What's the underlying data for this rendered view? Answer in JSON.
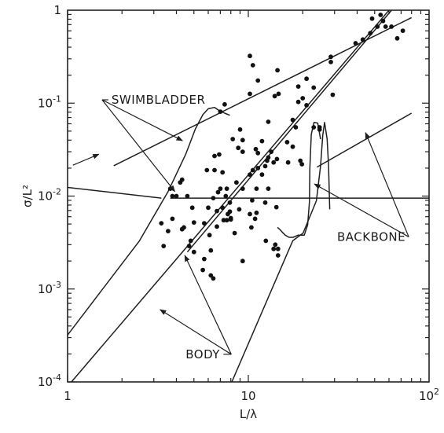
{
  "chart_data": {
    "type": "scatter",
    "x_scale": "log",
    "y_scale": "log",
    "xlim": [
      1,
      100
    ],
    "ylim": [
      0.0001,
      1
    ],
    "grid": false,
    "xlabel": "L/λ",
    "ylabel": "σ/L²",
    "x_ticks": [
      {
        "value": 1,
        "base": "1",
        "exp": ""
      },
      {
        "value": 10,
        "base": "10",
        "exp": ""
      },
      {
        "value": 100,
        "base": "10",
        "exp": "2"
      }
    ],
    "y_ticks": [
      {
        "value": 1,
        "base": "1",
        "exp": ""
      },
      {
        "value": 0.1,
        "base": "10",
        "exp": "-1"
      },
      {
        "value": 0.01,
        "base": "10",
        "exp": "-2"
      },
      {
        "value": 0.001,
        "base": "10",
        "exp": "-3"
      },
      {
        "value": 0.0001,
        "base": "10",
        "exp": "-4"
      }
    ],
    "points": [
      [
        53.9,
        0.891
      ],
      [
        48.4,
        0.812
      ],
      [
        55.6,
        0.766
      ],
      [
        57.5,
        0.666
      ],
      [
        51.8,
        0.666
      ],
      [
        61.9,
        0.666
      ],
      [
        71.6,
        0.602
      ],
      [
        47.3,
        0.566
      ],
      [
        66.7,
        0.498
      ],
      [
        43.0,
        0.484
      ],
      [
        39.2,
        0.441
      ],
      [
        28.6,
        0.315
      ],
      [
        28.6,
        0.277
      ],
      [
        10.2,
        0.322
      ],
      [
        10.6,
        0.256
      ],
      [
        14.5,
        0.226
      ],
      [
        11.3,
        0.175
      ],
      [
        21.0,
        0.183
      ],
      [
        18.9,
        0.151
      ],
      [
        23.0,
        0.147
      ],
      [
        14.0,
        0.119
      ],
      [
        14.7,
        0.126
      ],
      [
        10.2,
        0.126
      ],
      [
        29.3,
        0.123
      ],
      [
        18.9,
        0.103
      ],
      [
        20.0,
        0.113
      ],
      [
        21.0,
        0.095
      ],
      [
        7.4,
        0.097
      ],
      [
        7.0,
        0.081
      ],
      [
        17.6,
        0.066
      ],
      [
        12.9,
        0.063
      ],
      [
        18.3,
        0.055
      ],
      [
        23.0,
        0.055
      ],
      [
        24.8,
        0.052
      ],
      [
        9.0,
        0.052
      ],
      [
        9.3,
        0.04
      ],
      [
        24.8,
        0.055
      ],
      [
        8.2,
        0.041
      ],
      [
        11.9,
        0.039
      ],
      [
        16.4,
        0.038
      ],
      [
        8.8,
        0.033
      ],
      [
        11.0,
        0.032
      ],
      [
        17.6,
        0.034
      ],
      [
        9.3,
        0.03
      ],
      [
        11.3,
        0.029
      ],
      [
        6.9,
        0.028
      ],
      [
        6.5,
        0.027
      ],
      [
        13.4,
        0.03
      ],
      [
        12.9,
        0.026
      ],
      [
        14.4,
        0.025
      ],
      [
        12.7,
        0.024
      ],
      [
        13.8,
        0.023
      ],
      [
        16.6,
        0.023
      ],
      [
        19.4,
        0.024
      ],
      [
        19.8,
        0.022
      ],
      [
        12.4,
        0.021
      ],
      [
        11.3,
        0.02
      ],
      [
        10.6,
        0.019
      ],
      [
        10.2,
        0.017
      ],
      [
        11.9,
        0.017
      ],
      [
        5.9,
        0.019
      ],
      [
        6.5,
        0.019
      ],
      [
        7.2,
        0.018
      ],
      [
        4.3,
        0.015
      ],
      [
        4.2,
        0.014
      ],
      [
        8.6,
        0.014
      ],
      [
        3.7,
        0.012
      ],
      [
        7.0,
        0.012
      ],
      [
        7.6,
        0.012
      ],
      [
        9.3,
        0.012
      ],
      [
        11.1,
        0.012
      ],
      [
        12.9,
        0.012
      ],
      [
        4.0,
        0.01
      ],
      [
        3.8,
        0.01
      ],
      [
        4.6,
        0.01
      ],
      [
        6.8,
        0.011
      ],
      [
        7.5,
        0.01
      ],
      [
        10.5,
        0.009
      ],
      [
        6.4,
        0.0095
      ],
      [
        7.9,
        0.0085
      ],
      [
        12.4,
        0.0085
      ],
      [
        4.9,
        0.0075
      ],
      [
        7.2,
        0.0075
      ],
      [
        6.0,
        0.0075
      ],
      [
        14.3,
        0.0076
      ],
      [
        8.9,
        0.0072
      ],
      [
        6.7,
        0.0069
      ],
      [
        7.9,
        0.0068
      ],
      [
        11.1,
        0.0066
      ],
      [
        7.7,
        0.0064
      ],
      [
        3.8,
        0.0057
      ],
      [
        10.2,
        0.0064
      ],
      [
        8.0,
        0.0058
      ],
      [
        10.9,
        0.0057
      ],
      [
        7.3,
        0.0055
      ],
      [
        7.6,
        0.0055
      ],
      [
        8.0,
        0.0056
      ],
      [
        5.0,
        0.0052
      ],
      [
        3.3,
        0.0051
      ],
      [
        5.7,
        0.0051
      ],
      [
        4.4,
        0.0046
      ],
      [
        6.7,
        0.0047
      ],
      [
        10.4,
        0.0046
      ],
      [
        3.6,
        0.0042
      ],
      [
        4.3,
        0.0044
      ],
      [
        8.4,
        0.004
      ],
      [
        6.1,
        0.0038
      ],
      [
        4.8,
        0.0033
      ],
      [
        3.4,
        0.0029
      ],
      [
        4.7,
        0.0029
      ],
      [
        6.2,
        0.0026
      ],
      [
        5.0,
        0.0025
      ],
      [
        13.8,
        0.0027
      ],
      [
        14.6,
        0.0023
      ],
      [
        5.7,
        0.0021
      ],
      [
        9.3,
        0.002
      ],
      [
        5.6,
        0.0016
      ],
      [
        6.2,
        0.0014
      ],
      [
        6.4,
        0.0013
      ],
      [
        14.6,
        0.0027
      ],
      [
        14.1,
        0.003
      ],
      [
        12.5,
        0.0033
      ]
    ],
    "curves": [
      {
        "role": "swimbladder",
        "points": [
          [
            1.8,
            0.0212
          ],
          [
            80,
            0.832
          ]
        ]
      },
      {
        "role": "swimbladder",
        "points": [
          [
            1,
            0.0124
          ],
          [
            3.3,
            0.0095
          ]
        ]
      },
      {
        "role": "swimbladder",
        "points": [
          [
            1,
            0.00032
          ],
          [
            2.5,
            0.0033
          ],
          [
            3.6,
            0.0112
          ],
          [
            4.5,
            0.028
          ],
          [
            5.1,
            0.053
          ],
          [
            5.6,
            0.075
          ],
          [
            6.0,
            0.087
          ],
          [
            6.5,
            0.09
          ],
          [
            6.9,
            0.083
          ],
          [
            7.4,
            0.078
          ],
          [
            7.9,
            0.074
          ]
        ]
      },
      {
        "role": "body",
        "points": [
          [
            1.05,
            0.0001
          ],
          [
            60,
            1
          ]
        ]
      },
      {
        "role": "body",
        "points": [
          [
            3.7,
            0.0095
          ],
          [
            100,
            0.0095
          ]
        ]
      },
      {
        "role": "body",
        "points": [
          [
            4.6,
            0.0025
          ],
          [
            62,
            1
          ]
        ]
      },
      {
        "role": "body",
        "points": [
          [
            8.1,
            0.0001
          ],
          [
            17.6,
            0.0033
          ],
          [
            20.1,
            0.004
          ],
          [
            23.8,
            0.0089
          ],
          [
            25.1,
            0.021
          ],
          [
            25.8,
            0.045
          ],
          [
            26.4,
            0.062
          ],
          [
            27.3,
            0.041
          ],
          [
            27.8,
            0.021
          ],
          [
            28.2,
            0.0072
          ]
        ]
      },
      {
        "role": "backbone",
        "points": [
          [
            24,
            0.0205
          ],
          [
            80,
            0.078
          ]
        ]
      },
      {
        "role": "backbone",
        "points": [
          [
            14.5,
            0.0046
          ],
          [
            14.9,
            0.0044
          ],
          [
            15.4,
            0.0041
          ],
          [
            16.0,
            0.0038
          ],
          [
            16.8,
            0.0036
          ],
          [
            17.7,
            0.0036
          ],
          [
            18.9,
            0.0038
          ],
          [
            20.4,
            0.0038
          ],
          [
            21.3,
            0.0049
          ],
          [
            21.8,
            0.0087
          ],
          [
            21.9,
            0.02
          ],
          [
            22.3,
            0.046
          ],
          [
            23.1,
            0.062
          ],
          [
            24.2,
            0.061
          ],
          [
            25.1,
            0.041
          ]
        ]
      }
    ],
    "annotations": [
      {
        "text": "SWIMBLADDER",
        "at": [
          1.75,
          0.0985
        ],
        "arrows_to": [
          [
            4.32,
            0.0395
          ],
          [
            3.92,
            0.0112
          ]
        ],
        "extra_lines": [
          [
            [
              1.07,
              0.0215
            ],
            [
              1.49,
              0.0282
            ]
          ]
        ]
      },
      {
        "text": "BACKBONE",
        "at": [
          31,
          0.0033
        ],
        "arrows_to": [
          [
            44.5,
            0.0482
          ],
          [
            23.2,
            0.0135
          ]
        ]
      },
      {
        "text": "BODY",
        "at": [
          4.5,
          0.00018
        ],
        "arrows_to": [
          [
            4.45,
            0.0023
          ],
          [
            3.25,
            0.0006
          ]
        ]
      }
    ]
  }
}
